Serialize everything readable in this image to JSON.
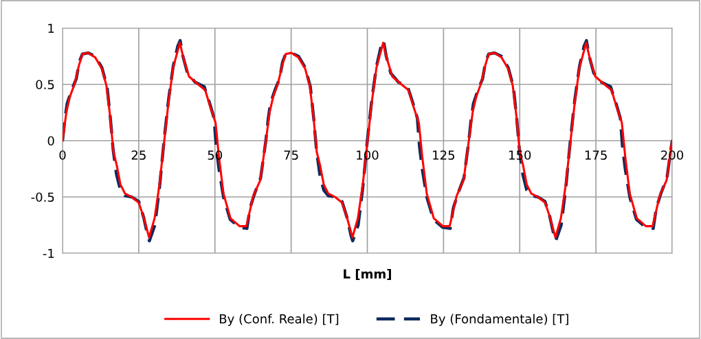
{
  "chart_data": {
    "type": "line",
    "xlabel": "L [mm]",
    "xlim": [
      0,
      200
    ],
    "xticks": [
      0,
      25,
      50,
      75,
      100,
      125,
      150,
      175,
      200
    ],
    "ylim": [
      -1,
      1
    ],
    "yticks": [
      -1,
      -0.5,
      0,
      0.5,
      1
    ],
    "grid": true,
    "legend": "bottom",
    "marker": "none",
    "series": [
      {
        "name": "By (Conf. Reale) [T]",
        "color": "#ff0000",
        "line_style": "solid",
        "x": [
          0,
          1.3,
          2.4,
          3.9,
          5.4,
          6.5,
          8.4,
          10.7,
          12.9,
          14.4,
          15.6,
          16.7,
          17.8,
          19.0,
          20.5,
          22.7,
          25,
          26.5,
          28.4,
          30.2,
          31.8,
          33.3,
          34.8,
          36.3,
          38.5,
          39.7,
          41.5,
          44.5,
          46.8,
          48.7,
          50.2,
          51.3,
          52.8,
          55.1,
          58.1,
          60.3,
          62.6,
          64.9,
          66.7,
          68.0,
          69.1,
          70.6,
          72.1,
          73.2,
          75.1,
          77.4,
          79.6,
          81.1,
          82.3,
          83.4,
          84.5,
          85.7,
          87.2,
          89.4,
          91.7,
          93.2,
          95.1,
          96.9,
          98.5,
          100.0,
          101.5,
          103.0,
          105.2,
          106.4,
          108.2,
          111.2,
          113.5,
          115.4,
          116.9,
          118.0,
          119.5,
          121.8,
          124.8,
          127.0,
          129.3,
          131.6,
          133.3,
          134.6,
          135.7,
          137.2,
          138.7,
          139.8,
          141.7,
          144.0,
          146.2,
          147.7,
          148.9,
          150.0,
          151.1,
          152.3,
          153.8,
          156.0,
          158.3,
          159.8,
          161.7,
          163.5,
          165.1,
          166.6,
          168.1,
          169.6,
          171.8,
          173.0,
          174.8,
          177.8,
          180.1,
          182.0,
          183.5,
          184.6,
          186.1,
          188.4,
          191.4,
          193.6,
          195.9,
          198.2,
          200
        ],
        "values": [
          0,
          0.26,
          0.39,
          0.5,
          0.67,
          0.77,
          0.78,
          0.74,
          0.64,
          0.49,
          0.22,
          -0.1,
          -0.22,
          -0.39,
          -0.47,
          -0.5,
          -0.55,
          -0.67,
          -0.86,
          -0.69,
          -0.39,
          -0.02,
          0.35,
          0.65,
          0.87,
          0.73,
          0.57,
          0.5,
          0.45,
          0.28,
          0.16,
          -0.14,
          -0.47,
          -0.69,
          -0.76,
          -0.76,
          -0.49,
          -0.35,
          0,
          0.26,
          0.39,
          0.5,
          0.67,
          0.77,
          0.78,
          0.74,
          0.64,
          0.49,
          0.22,
          -0.1,
          -0.22,
          -0.39,
          -0.47,
          -0.5,
          -0.55,
          -0.67,
          -0.86,
          -0.69,
          -0.39,
          -0.02,
          0.35,
          0.65,
          0.87,
          0.73,
          0.57,
          0.5,
          0.45,
          0.28,
          0.16,
          -0.14,
          -0.47,
          -0.69,
          -0.76,
          -0.76,
          -0.49,
          -0.35,
          0,
          0.26,
          0.39,
          0.5,
          0.67,
          0.77,
          0.78,
          0.74,
          0.64,
          0.49,
          0.22,
          -0.1,
          -0.22,
          -0.39,
          -0.47,
          -0.5,
          -0.55,
          -0.67,
          -0.86,
          -0.69,
          -0.39,
          -0.02,
          0.35,
          0.65,
          0.87,
          0.73,
          0.57,
          0.5,
          0.45,
          0.28,
          0.16,
          -0.14,
          -0.47,
          -0.69,
          -0.76,
          -0.76,
          -0.49,
          -0.35,
          0
        ]
      },
      {
        "name": "By (Fondamentale) [T]",
        "color": "#0d2b5e",
        "line_style": "dashed",
        "x": [
          0,
          0.8,
          1.5,
          3,
          4.5,
          5.5,
          6.5,
          8.4,
          10.7,
          12.9,
          14.6,
          15.7,
          16.6,
          17.7,
          19,
          20.5,
          22.7,
          25,
          26.6,
          28,
          28.5,
          30.3,
          31.8,
          33.3,
          34.8,
          36.3,
          37.8,
          38.6,
          39.5,
          41,
          43.5,
          46.5,
          48.3,
          49.7,
          50.4,
          51.3,
          52.8,
          55,
          58,
          60.5,
          61.5,
          63,
          65,
          66.7,
          67.5,
          68.2,
          69.7,
          71.2,
          72.2,
          73.2,
          75.1,
          77.4,
          79.6,
          81.3,
          82.4,
          83.3,
          84.4,
          85.7,
          87.2,
          89.4,
          91.7,
          93.3,
          94.7,
          95.2,
          97.0,
          98.5,
          100.0,
          101.5,
          103.0,
          104.5,
          105.3,
          106.2,
          107.7,
          110.2,
          113.2,
          115.0,
          116.4,
          117.1,
          118.0,
          119.5,
          121.7,
          124.7,
          127.2,
          128.2,
          129.7,
          131.7,
          133.3,
          134.1,
          134.8,
          136.3,
          137.8,
          138.8,
          139.8,
          141.7,
          144.0,
          146.2,
          147.9,
          149.0,
          149.9,
          151.0,
          152.3,
          153.8,
          156.0,
          158.3,
          159.9,
          161.3,
          161.8,
          163.6,
          165.1,
          166.6,
          168.1,
          169.6,
          171.1,
          171.9,
          172.8,
          174.3,
          176.8,
          179.8,
          181.6,
          183.0,
          183.7,
          184.6,
          186.1,
          188.3,
          191.3,
          193.8,
          194.8,
          196.3,
          198.3,
          200
        ],
        "values": [
          0,
          0.2,
          0.33,
          0.45,
          0.55,
          0.7,
          0.77,
          0.78,
          0.75,
          0.65,
          0.48,
          0.2,
          -0.08,
          -0.3,
          -0.44,
          -0.49,
          -0.5,
          -0.54,
          -0.68,
          -0.85,
          -0.89,
          -0.75,
          -0.42,
          0,
          0.37,
          0.66,
          0.84,
          0.89,
          0.75,
          0.6,
          0.52,
          0.48,
          0.33,
          0.2,
          -0.05,
          -0.25,
          -0.5,
          -0.7,
          -0.77,
          -0.78,
          -0.6,
          -0.47,
          -0.33,
          0,
          0.2,
          0.33,
          0.45,
          0.55,
          0.7,
          0.77,
          0.78,
          0.75,
          0.65,
          0.48,
          0.2,
          -0.08,
          -0.3,
          -0.44,
          -0.49,
          -0.5,
          -0.54,
          -0.68,
          -0.85,
          -0.89,
          -0.75,
          -0.42,
          0,
          0.37,
          0.66,
          0.84,
          0.89,
          0.75,
          0.6,
          0.52,
          0.48,
          0.33,
          0.2,
          -0.05,
          -0.25,
          -0.5,
          -0.7,
          -0.77,
          -0.78,
          -0.6,
          -0.47,
          -0.33,
          0,
          0.2,
          0.33,
          0.45,
          0.55,
          0.7,
          0.77,
          0.78,
          0.75,
          0.65,
          0.48,
          0.2,
          -0.08,
          -0.3,
          -0.44,
          -0.49,
          -0.5,
          -0.54,
          -0.68,
          -0.85,
          -0.89,
          -0.75,
          -0.42,
          0,
          0.37,
          0.66,
          0.84,
          0.89,
          0.75,
          0.6,
          0.52,
          0.48,
          0.33,
          0.2,
          -0.05,
          -0.25,
          -0.5,
          -0.7,
          -0.77,
          -0.78,
          -0.6,
          -0.47,
          -0.33,
          0
        ]
      }
    ]
  }
}
